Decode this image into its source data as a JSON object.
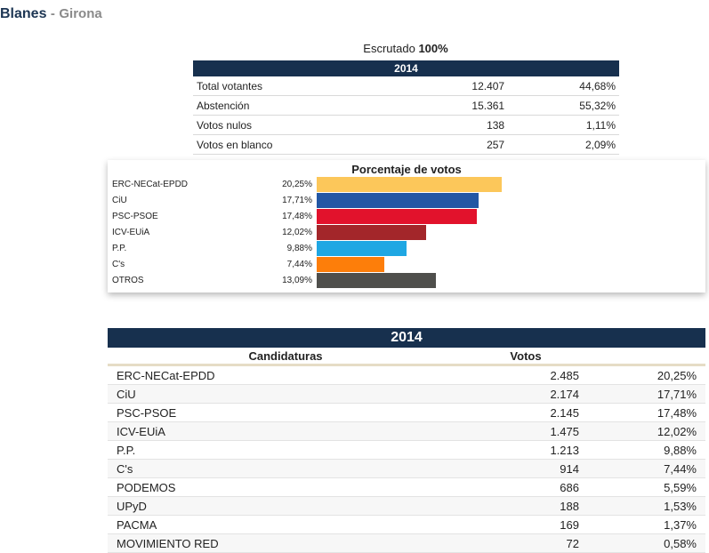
{
  "header": {
    "city": "Blanes",
    "separator": "-",
    "province": "Girona"
  },
  "escrutado": {
    "label": "Escrutado",
    "value": "100%"
  },
  "summary": {
    "year": "2014",
    "rows": [
      {
        "label": "Total votantes",
        "count": "12.407",
        "pct": "44,68%"
      },
      {
        "label": "Abstención",
        "count": "15.361",
        "pct": "55,32%"
      },
      {
        "label": "Votos nulos",
        "count": "138",
        "pct": "1,11%"
      },
      {
        "label": "Votos en blanco",
        "count": "257",
        "pct": "2,09%"
      }
    ]
  },
  "chart_data": {
    "type": "bar",
    "title": "Porcentaje de votos",
    "categories": [
      "ERC-NECat-EPDD",
      "CiU",
      "PSC-PSOE",
      "ICV-EUiA",
      "P.P.",
      "C's",
      "OTROS"
    ],
    "values": [
      20.25,
      17.71,
      17.48,
      12.02,
      9.88,
      7.44,
      13.09
    ],
    "labels": [
      "20,25%",
      "17,71%",
      "17,48%",
      "12,02%",
      "9,88%",
      "7,44%",
      "13,09%"
    ],
    "colors": [
      "#fcc75a",
      "#2357a4",
      "#e2122c",
      "#a3262a",
      "#1fa7e3",
      "#fd7e0a",
      "#4f4f4c"
    ]
  },
  "results": {
    "year": "2014",
    "col_party": "Candidaturas",
    "col_votes": "Votos",
    "rows": [
      {
        "party": "ERC-NECat-EPDD",
        "votes": "2.485",
        "pct": "20,25%"
      },
      {
        "party": "CiU",
        "votes": "2.174",
        "pct": "17,71%"
      },
      {
        "party": "PSC-PSOE",
        "votes": "2.145",
        "pct": "17,48%"
      },
      {
        "party": "ICV-EUiA",
        "votes": "1.475",
        "pct": "12,02%"
      },
      {
        "party": "P.P.",
        "votes": "1.213",
        "pct": "9,88%"
      },
      {
        "party": "C's",
        "votes": "914",
        "pct": "7,44%"
      },
      {
        "party": "PODEMOS",
        "votes": "686",
        "pct": "5,59%"
      },
      {
        "party": "UPyD",
        "votes": "188",
        "pct": "1,53%"
      },
      {
        "party": "PACMA",
        "votes": "169",
        "pct": "1,37%"
      },
      {
        "party": "MOVIMIENTO RED",
        "votes": "72",
        "pct": "0,58%"
      }
    ]
  }
}
